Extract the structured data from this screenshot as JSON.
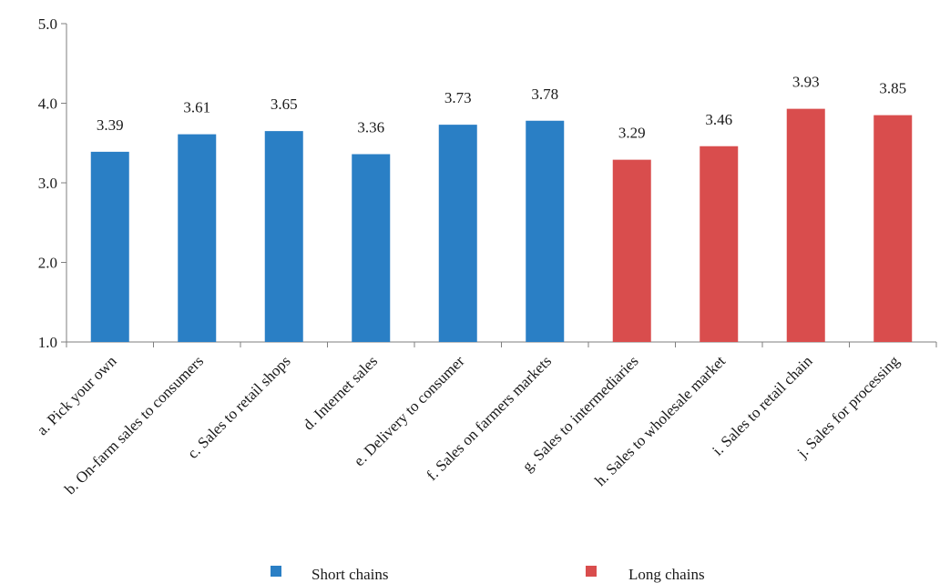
{
  "chart_data": {
    "type": "bar",
    "title": "",
    "xlabel": "",
    "ylabel": "",
    "ylim": [
      1.0,
      5.0
    ],
    "yticks": [
      "1.0",
      "2.0",
      "3.0",
      "4.0",
      "5.0"
    ],
    "grid": false,
    "legend_position": "bottom",
    "categories": [
      "a. Pick your own",
      "b. On-farm sales to consumers",
      "c. Sales to retail shops",
      "d. Internet sales",
      "e. Delivery to consumer",
      "f. Sales on farmers markets",
      "g. Sales  to intermediaries",
      "h. Sales to wholesale market",
      "i. Sales to retail chain",
      "j. Sales for processing"
    ],
    "values": [
      3.39,
      3.61,
      3.65,
      3.36,
      3.73,
      3.78,
      3.29,
      3.46,
      3.93,
      3.85
    ],
    "value_labels": [
      "3.39",
      "3.61",
      "3.65",
      "3.36",
      "3.73",
      "3.78",
      "3.29",
      "3.46",
      "3.93",
      "3.85"
    ],
    "groups": [
      "short",
      "short",
      "short",
      "short",
      "short",
      "short",
      "long",
      "long",
      "long",
      "long"
    ],
    "series": [
      {
        "key": "short",
        "name": "Short chains",
        "color": "#2a7fc5"
      },
      {
        "key": "long",
        "name": "Long chains",
        "color": "#d94d4d"
      }
    ]
  }
}
